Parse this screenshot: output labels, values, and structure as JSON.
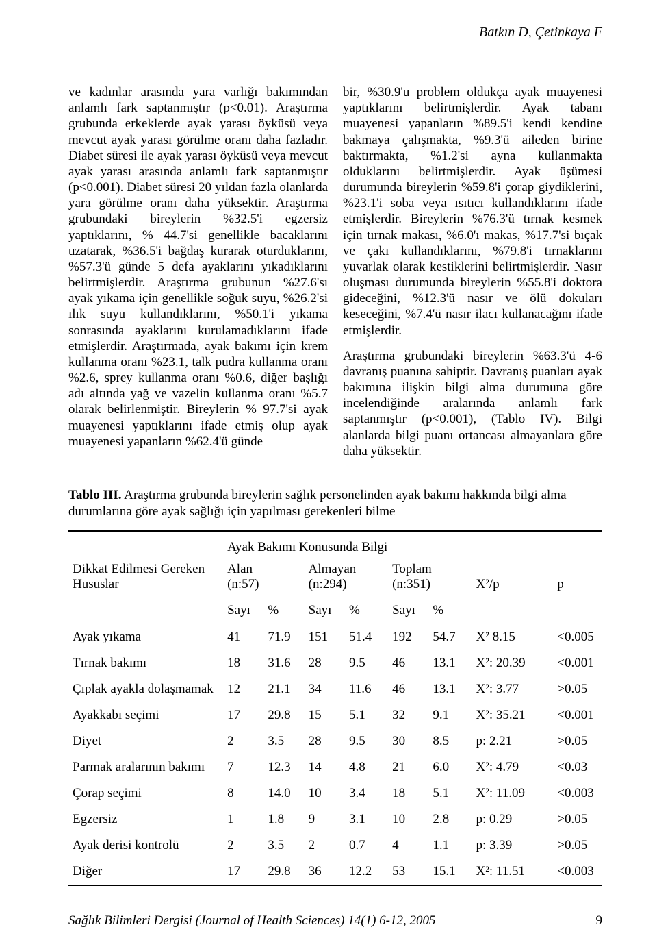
{
  "header": {
    "authors": "Batkın D, Çetinkaya F"
  },
  "body": {
    "left_p1": "ve kadınlar arasında yara varlığı bakımından anlamlı fark saptanmıştır (p<0.01). Araştırma grubunda erkeklerde ayak yarası öyküsü veya mevcut ayak yarası görülme oranı daha fazladır. Diabet süresi ile ayak yarası öyküsü veya mevcut ayak yarası arasında anlamlı fark saptanmıştır (p<0.001). Diabet süresi 20 yıldan fazla olanlarda yara görülme oranı daha yüksektir. Araştırma grubundaki bireylerin %32.5'i egzersiz yaptıklarını, % 44.7'si genellikle bacaklarını uzatarak, %36.5'i bağdaş kurarak oturduklarını, %57.3'ü günde 5 defa ayaklarını yıkadıklarını belirtmişlerdir. Araştırma grubunun %27.6'sı ayak yıkama için genellikle soğuk suyu, %26.2'si ılık suyu kullandıklarını, %50.1'i yıkama sonrasında ayaklarını kurulamadıklarını ifade etmişlerdir. Araştırmada, ayak bakımı için krem kullanma oranı %23.1, talk pudra kullanma oranı %2.6, sprey kullanma oranı %0.6, diğer başlığı adı altında yağ ve vazelin kullanma oranı %5.7 olarak belirlenmiştir. Bireylerin % 97.7'si ayak muayenesi yaptıklarını ifade etmiş olup ayak muayenesi yapanların %62.4'ü günde",
    "right_p1": "bir, %30.9'u problem oldukça ayak muayenesi yaptıklarını belirtmişlerdir. Ayak tabanı muayenesi yapanların %89.5'i kendi kendine bakmaya çalışmakta, %9.3'ü aileden birine baktırmakta, %1.2'si ayna kullanmakta olduklarını belirtmişlerdir. Ayak üşümesi durumunda bireylerin %59.8'i çorap giydiklerini, %23.1'i soba veya ısıtıcı kullandıklarını ifade etmişlerdir. Bireylerin %76.3'ü tırnak kesmek için tırnak makası, %6.0'ı makas, %17.7'si bıçak ve çakı kullandıklarını, %79.8'i tırnaklarını yuvarlak olarak kestiklerini belirtmişlerdir. Nasır oluşması durumunda bireylerin %55.8'i doktora gideceğini, %12.3'ü nasır ve ölü dokuları keseceğini, %7.4'ü nasır ilacı kullanacağını ifade etmişlerdir.",
    "right_p2": "Araştırma grubundaki bireylerin %63.3'ü 4-6 davranış puanına sahiptir. Davranış puanları ayak bakımına ilişkin bilgi alma durumuna göre incelendiğinde aralarında anlamlı fark saptanmıştır (p<0.001), (Tablo IV). Bilgi alanlarda bilgi puanı ortancası almayanlara göre daha yüksektir."
  },
  "table": {
    "caption_bold": "Tablo III.",
    "caption_rest": " Araştırma grubunda bireylerin sağlık personelinden ayak bakımı hakkında bilgi alma durumlarına göre ayak sağlığı için yapılması gerekenleri bilme",
    "left_header_l1": "Dikkat Edilmesi Gereken",
    "left_header_l2": "Hususlar",
    "group_header": "Ayak Bakımı Konusunda Bilgi",
    "col_groups": {
      "alan": {
        "label": "Alan",
        "n": "(n:57)"
      },
      "almayan": {
        "label": "Almayan",
        "n": "(n:294)"
      },
      "toplam": {
        "label": "Toplam",
        "n": "(n:351)"
      }
    },
    "stat_header": "X²/p",
    "p_header": "p",
    "count_label": "Sayı",
    "pct_label": "%",
    "rows": [
      {
        "label": "Ayak yıkama",
        "a_n": "41",
        "a_p": "71.9",
        "b_n": "151",
        "b_p": "51.4",
        "t_n": "192",
        "t_p": "54.7",
        "stat": "X² 8.15",
        "p": "<0.005"
      },
      {
        "label": "Tırnak bakımı",
        "a_n": "18",
        "a_p": "31.6",
        "b_n": "28",
        "b_p": "9.5",
        "t_n": "46",
        "t_p": "13.1",
        "stat": "X²: 20.39",
        "p": "<0.001"
      },
      {
        "label": "Çıplak ayakla dolaşmamak",
        "a_n": "12",
        "a_p": "21.1",
        "b_n": "34",
        "b_p": "11.6",
        "t_n": "46",
        "t_p": "13.1",
        "stat": "X²: 3.77",
        "p": ">0.05"
      },
      {
        "label": "Ayakkabı seçimi",
        "a_n": "17",
        "a_p": "29.8",
        "b_n": "15",
        "b_p": "5.1",
        "t_n": "32",
        "t_p": "9.1",
        "stat": "X²: 35.21",
        "p": "<0.001"
      },
      {
        "label": "Diyet",
        "a_n": "2",
        "a_p": "3.5",
        "b_n": "28",
        "b_p": "9.5",
        "t_n": "30",
        "t_p": "8.5",
        "stat": "p: 2.21",
        "p": ">0.05"
      },
      {
        "label": "Parmak aralarının bakımı",
        "a_n": "7",
        "a_p": "12.3",
        "b_n": "14",
        "b_p": "4.8",
        "t_n": "21",
        "t_p": "6.0",
        "stat": "X²: 4.79",
        "p": "<0.03"
      },
      {
        "label": "Çorap seçimi",
        "a_n": "8",
        "a_p": "14.0",
        "b_n": "10",
        "b_p": "3.4",
        "t_n": "18",
        "t_p": "5.1",
        "stat": "X²: 11.09",
        "p": "<0.003"
      },
      {
        "label": "Egzersiz",
        "a_n": "1",
        "a_p": "1.8",
        "b_n": "9",
        "b_p": "3.1",
        "t_n": "10",
        "t_p": "2.8",
        "stat": "p: 0.29",
        "p": ">0.05"
      },
      {
        "label": "Ayak derisi kontrolü",
        "a_n": "2",
        "a_p": "3.5",
        "b_n": "2",
        "b_p": "0.7",
        "t_n": "4",
        "t_p": "1.1",
        "stat": "p: 3.39",
        "p": ">0.05"
      },
      {
        "label": "Diğer",
        "a_n": "17",
        "a_p": "29.8",
        "b_n": "36",
        "b_p": "12.2",
        "t_n": "53",
        "t_p": "15.1",
        "stat": "X²: 11.51",
        "p": "<0.003"
      }
    ]
  },
  "footer": {
    "journal": "Sağlık Bilimleri Dergisi (Journal of Health Sciences) 14(1) 6-12, 2005",
    "page": "9"
  }
}
